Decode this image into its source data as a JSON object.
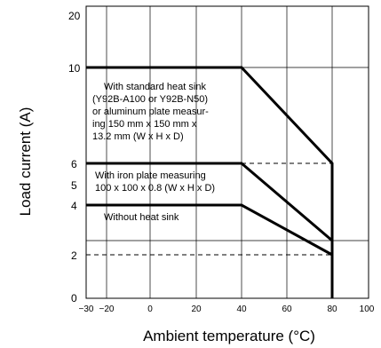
{
  "chart_data": {
    "type": "line",
    "xlabel": "Ambient temperature (°C)",
    "ylabel": "Load current (A)",
    "xlim": [
      -30,
      100
    ],
    "ylim": [
      0,
      20
    ],
    "x_ticks": [
      "−30",
      "−20",
      "0",
      "20",
      "40",
      "60",
      "80",
      "100"
    ],
    "y_ticks": [
      "0",
      "2",
      "4",
      "5",
      "6",
      "10",
      "20"
    ],
    "grid": true,
    "series": [
      {
        "x": [
          -30,
          40,
          80,
          80
        ],
        "y": [
          10,
          10,
          6,
          0
        ]
      },
      {
        "x": [
          -30,
          40,
          80
        ],
        "y": [
          6,
          6,
          2.5
        ]
      },
      {
        "x": [
          -30,
          40,
          80
        ],
        "y": [
          4,
          4,
          2
        ]
      }
    ],
    "dashed_lines": [
      {
        "x": [
          40,
          80
        ],
        "y": [
          6,
          6
        ]
      },
      {
        "x": [
          -30,
          80
        ],
        "y": [
          2,
          2
        ]
      }
    ],
    "annotations": [
      {
        "lines": [
          "With standard heat sink",
          "(Y92B-A100 or Y92B-N50)",
          "or aluminum plate measur-",
          "ing 150 mm x 150 mm x",
          "13.2 mm (W x H x D)"
        ]
      },
      {
        "lines": [
          "With iron plate measuring",
          "100 x 100 x 0.8 (W x H x D)"
        ]
      },
      {
        "lines": [
          "Without heat sink"
        ]
      }
    ]
  }
}
